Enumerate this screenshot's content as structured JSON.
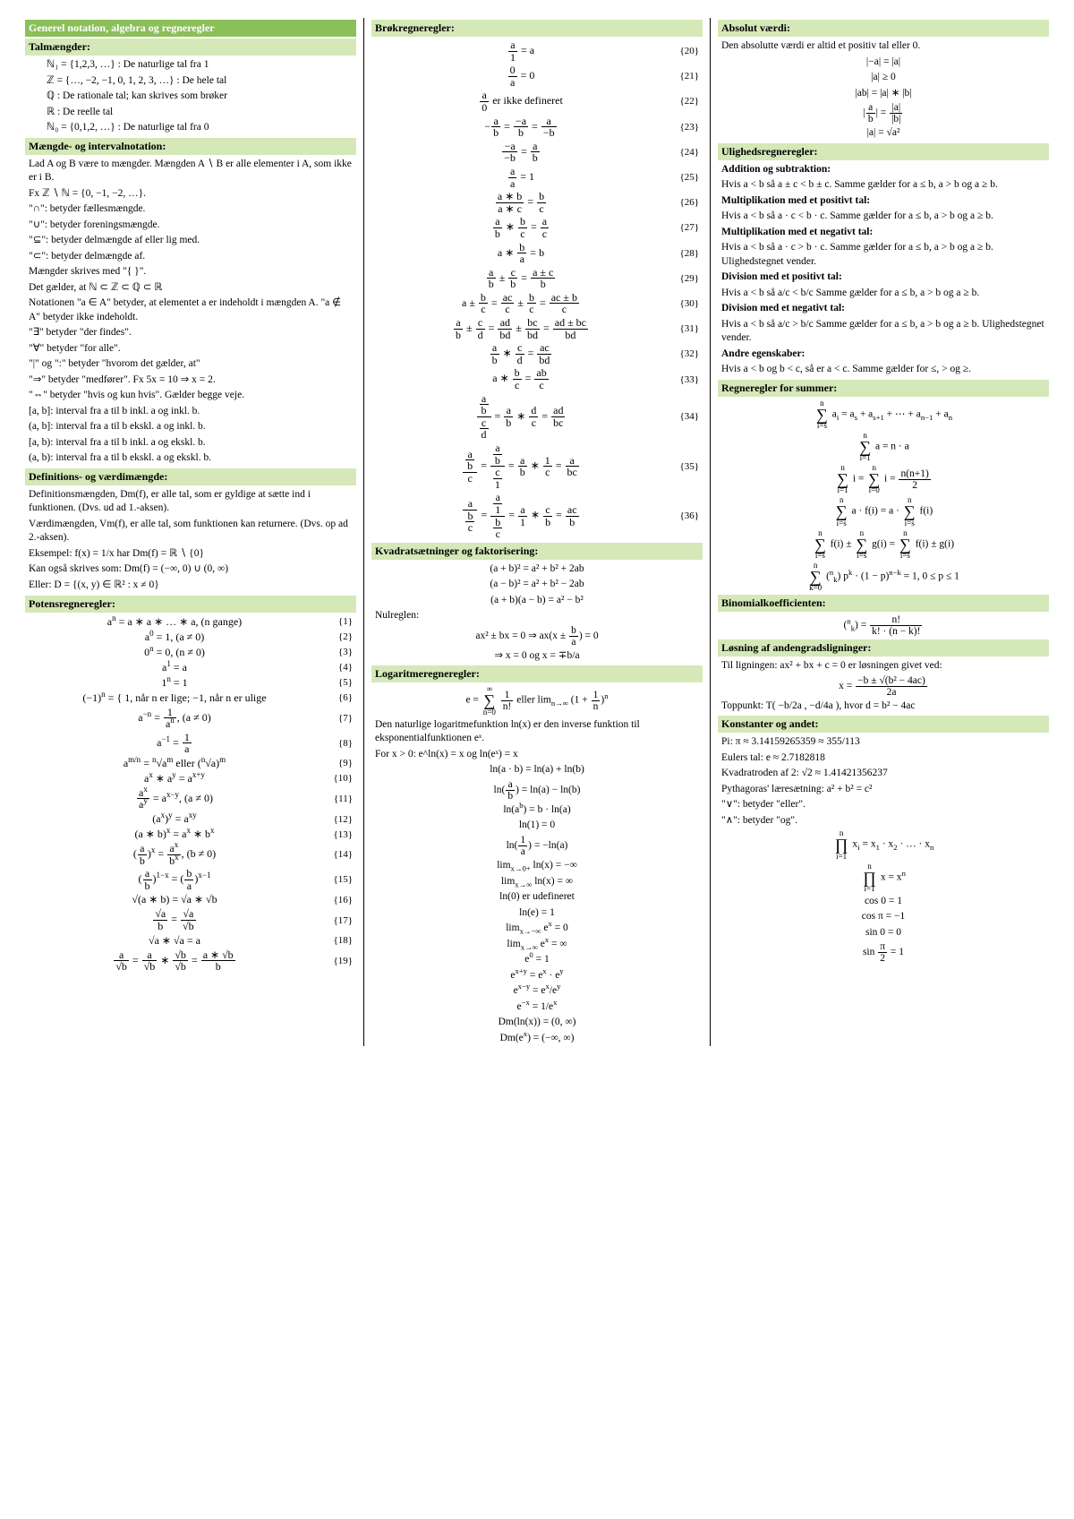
{
  "col1": {
    "h1": "Generel notation, algebra og regneregler",
    "sh1": "Talmængder:",
    "tal": [
      "ℕ₁ = {1,2,3, …} : De naturlige tal fra 1",
      "ℤ = {…, −2, −1, 0, 1, 2, 3, …} : De hele tal",
      "ℚ : De rationale tal;  kan skrives som brøker",
      "ℝ : De reelle tal",
      "ℕ₀ = {0,1,2, …} : De naturlige tal fra 0"
    ],
    "sh2": "Mængde- og intervalnotation:",
    "set": [
      "Lad A og B være to mængder. Mængden A ∖ B er alle elementer i A, som ikke er i B.",
      "Fx ℤ ∖ ℕ = {0, −1, −2, …}.",
      "\"∩\": betyder fællesmængde.",
      "\"∪\": betyder foreningsmængde.",
      "\"⊆\": betyder delmængde af eller lig med.",
      "\"⊂\": betyder delmængde af.",
      "Mængder skrives med \"{ }\".",
      "Det gælder, at ℕ ⊂ ℤ ⊂ ℚ ⊂ ℝ",
      "Notationen \"a ∈ A\" betyder, at elementet a er indeholdt i mængden A. \"a ∉ A\" betyder ikke indeholdt.",
      "\"∃\" betyder \"der findes\".",
      "\"∀\" betyder \"for alle\".",
      "\"|\" og \":\" betyder \"hvorom det gælder, at\"",
      "\"⇒\" betyder \"medfører\". Fx 5x = 10 ⇒ x = 2.",
      "\"⇔\" betyder \"hvis og kun hvis\". Gælder begge veje.",
      "[a, b]: interval fra a til b inkl. a og inkl. b.",
      "(a, b]: interval fra a til b ekskl. a og inkl. b.",
      "[a, b): interval fra a til b inkl. a og ekskl. b.",
      "(a, b): interval fra a til b ekskl. a og ekskl. b."
    ],
    "sh3": "Definitions- og værdimængde:",
    "def": [
      "Definitionsmængden, Dm(f), er alle tal, som er gyldige at sætte ind i funktionen. (Dvs. ud ad 1.-aksen).",
      "Værdimængden, Vm(f), er alle tal, som funktionen kan returnere. (Dvs. op ad 2.-aksen).",
      "Eksempel: f(x) = 1/x har Dm(f) = ℝ ∖ {0}",
      "Kan også skrives som: Dm(f) = (−∞, 0) ∪ (0, ∞)",
      "Eller: D = {(x, y) ∈ ℝ² : x ≠ 0}"
    ],
    "sh4": "Potensregneregler:",
    "pot_nums": [
      "{1}",
      "{2}",
      "{3}",
      "{4}",
      "{5}",
      "{6}",
      "{7}",
      "{8}",
      "{9}",
      "{10}",
      "{11}",
      "{12}",
      "{13}",
      "{14}",
      "{15}",
      "{16}",
      "{17}",
      "{18}",
      "{19}"
    ]
  },
  "col2": {
    "sh1": "Brøkregneregler:",
    "brok_nums": [
      "{20}",
      "{21}",
      "{22}",
      "{23}",
      "{24}",
      "{25}",
      "{26}",
      "{27}",
      "{28}",
      "{29}",
      "{30}",
      "{31}",
      "{32}",
      "{33}",
      "{34}",
      "{35}",
      "{36}"
    ],
    "sh2": "Kvadratsætninger og faktorisering:",
    "kvad": [
      "(a + b)² = a² + b² + 2ab",
      "(a − b)² = a² + b² − 2ab",
      "(a + b)(a − b) = a² − b²"
    ],
    "nul_label": "Nulreglen:",
    "sh3": "Logaritmeregneregler:",
    "log_text": "Den naturlige logaritmefunktion ln(x) er den inverse funktion til eksponentialfunktionen eˣ.",
    "log_for": "For x > 0: e^ln(x) = x og ln(eˣ) = x"
  },
  "col3": {
    "sh1": "Absolut værdi:",
    "abs_text": "Den absolutte værdi er altid et positiv tal eller 0.",
    "sh2": "Ulighedsregneregler:",
    "u_add_h": "Addition og subtraktion:",
    "u_add": "Hvis a < b så a ± c < b ± c. Samme gælder for a ≤ b, a > b og a ≥ b.",
    "u_mulp_h": "Multiplikation med et positivt tal:",
    "u_mulp": "Hvis a < b så a · c < b · c. Samme gælder for a ≤ b, a > b og a ≥ b.",
    "u_muln_h": "Multiplikation med et negativt tal:",
    "u_muln": "Hvis a < b så a · c > b · c. Samme gælder for a ≤ b, a > b og a ≥ b. Ulighedstegnet vender.",
    "u_divp_h": "Division med et positivt tal:",
    "u_divp": "Hvis a < b så a/c < b/c Samme gælder for a ≤ b, a > b og a ≥ b.",
    "u_divn_h": "Division med et negativt tal:",
    "u_divn": "Hvis a < b så a/c > b/c Samme gælder for a ≤ b, a > b og a ≥ b. Ulighedstegnet vender.",
    "u_other_h": "Andre egenskaber:",
    "u_other": "Hvis a < b og b < c, så er a < c. Samme gælder for ≤, > og ≥.",
    "sh3": "Regneregler for summer:",
    "sh4": "Binomialkoefficienten:",
    "sh5": "Løsning af andengradsligninger:",
    "quad_text": "Til ligningen: ax² + bx + c = 0 er løsningen givet ved:",
    "quad_top": "Toppunkt: T( −b/2a , −d/4a ), hvor d = b² − 4ac",
    "sh6": "Konstanter og andet:",
    "konst": [
      "Pi: π ≈ 3.14159265359 ≈ 355/113",
      "Eulers tal: e ≈ 2.7182818",
      "Kvadratroden af 2: √2 ≈ 1.41421356237",
      "Pythagoras' læresætning: a² + b² = c²",
      "\"∨\": betyder \"eller\".",
      "\"∧\": betyder \"og\"."
    ]
  }
}
